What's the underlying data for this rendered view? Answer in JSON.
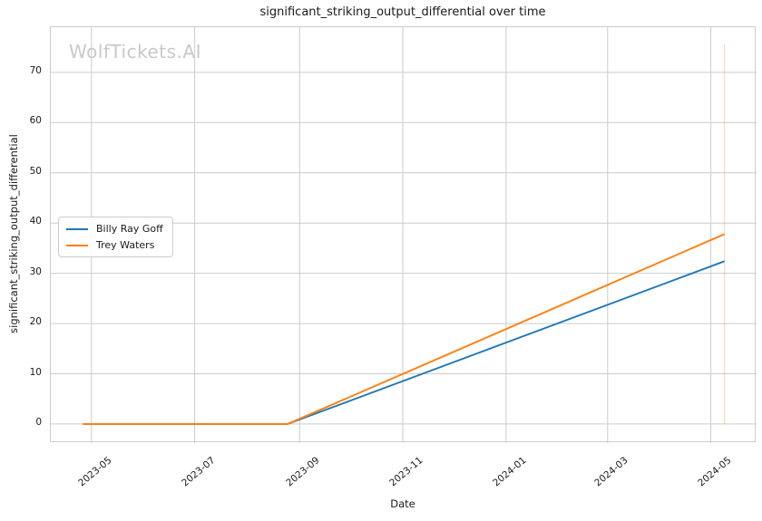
{
  "watermark": "WolfTickets.AI",
  "colors": {
    "background": "#ffffff",
    "grid": "#cccccc",
    "axis_border": "#cccccc",
    "text": "#1a1a1a",
    "watermark": "#c9c9c9",
    "series_blue": "#1f77b4",
    "series_orange": "#ff7f0e"
  },
  "chart_data": {
    "type": "line",
    "title": "significant_striking_output_differential over time",
    "xlabel": "Date",
    "ylabel": "significant_striking_output_differential",
    "grid": true,
    "legend_position": "center left",
    "x_range": [
      "2023-04-07",
      "2024-05-28"
    ],
    "y_range": [
      -3.8,
      79.0
    ],
    "x_ticks": [
      {
        "value": "2023-05-01",
        "label": "2023-05"
      },
      {
        "value": "2023-07-01",
        "label": "2023-07"
      },
      {
        "value": "2023-09-01",
        "label": "2023-09"
      },
      {
        "value": "2023-11-01",
        "label": "2023-11"
      },
      {
        "value": "2024-01-01",
        "label": "2024-01"
      },
      {
        "value": "2024-03-01",
        "label": "2024-03"
      },
      {
        "value": "2024-05-01",
        "label": "2024-05"
      }
    ],
    "y_ticks": [
      0,
      10,
      20,
      30,
      40,
      50,
      60,
      70
    ],
    "series": [
      {
        "name": "Billy Ray Goff",
        "color": "#1f77b4",
        "points": [
          [
            "2023-04-26",
            0
          ],
          [
            "2023-08-25",
            0
          ],
          [
            "2024-05-09",
            32.4
          ]
        ]
      },
      {
        "name": "Trey Waters",
        "color": "#ff7f0e",
        "points": [
          [
            "2023-04-26",
            0
          ],
          [
            "2023-08-25",
            0
          ],
          [
            "2024-05-09",
            37.8
          ]
        ]
      }
    ],
    "event_marker": {
      "x": "2024-05-09",
      "y_from": 0,
      "y_to": 75.6,
      "color": "#ff7f0e",
      "opacity": 0.3
    }
  }
}
